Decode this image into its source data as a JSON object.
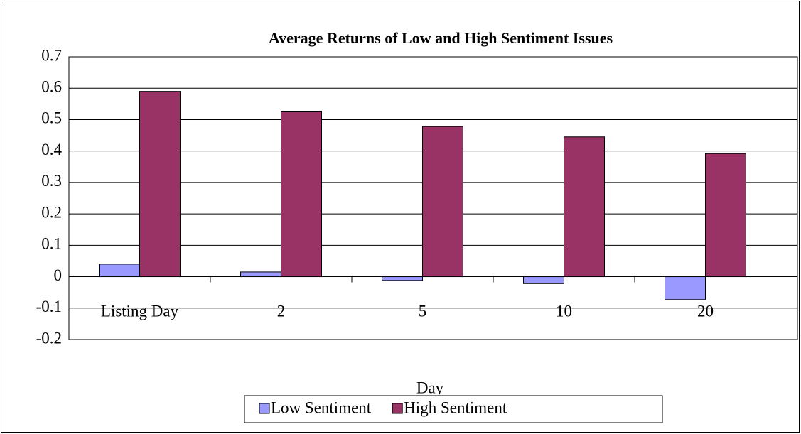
{
  "chart_data": {
    "type": "bar",
    "title": "Average Returns of Low and High Sentiment Issues",
    "x_label": "Day",
    "categories": [
      "Listing Day",
      "2",
      "5",
      "10",
      "20"
    ],
    "series": [
      {
        "name": "Low Sentiment",
        "color": "#9999ff",
        "values": [
          0.04,
          0.015,
          -0.012,
          -0.022,
          -0.073
        ]
      },
      {
        "name": "High Sentiment",
        "color": "#993366",
        "values": [
          0.59,
          0.527,
          0.478,
          0.445,
          0.392
        ]
      }
    ],
    "ylim": [
      -0.2,
      0.7
    ],
    "yticks": [
      -0.2,
      -0.1,
      0,
      0.1,
      0.2,
      0.3,
      0.4,
      0.5,
      0.6,
      0.7
    ],
    "grid": true,
    "legend": "bottom"
  }
}
